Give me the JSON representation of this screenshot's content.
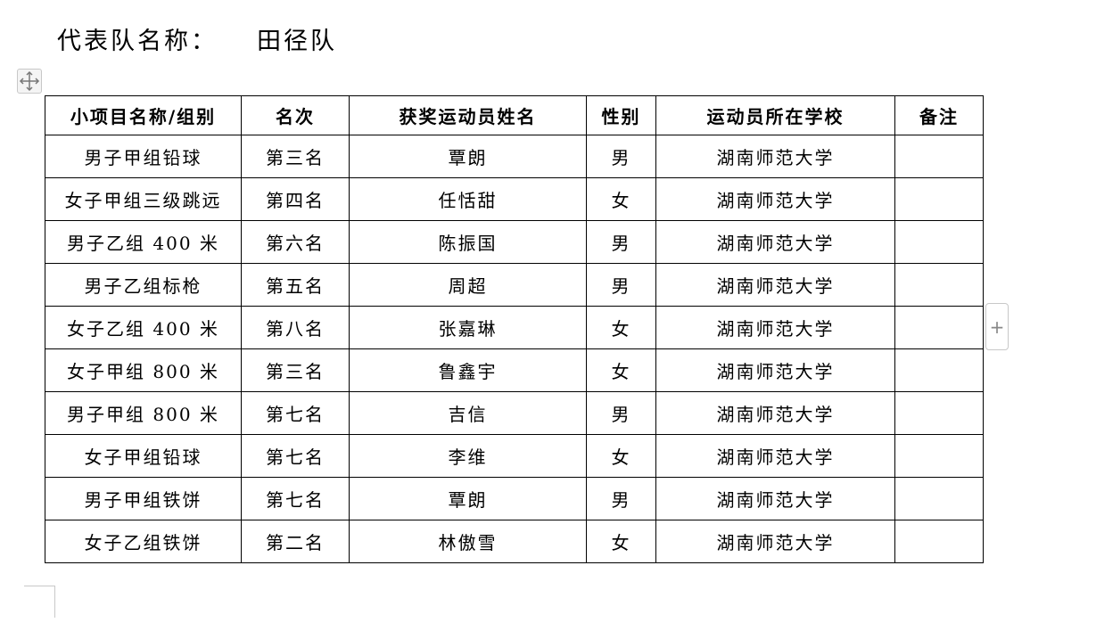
{
  "title": {
    "label": "代表队名称：",
    "value": "田径队"
  },
  "table": {
    "headers": [
      "小项目名称/组别",
      "名次",
      "获奖运动员姓名",
      "性别",
      "运动员所在学校",
      "备注"
    ],
    "rows": [
      [
        "男子甲组铅球",
        "第三名",
        "覃朗",
        "男",
        "湖南师范大学",
        ""
      ],
      [
        "女子甲组三级跳远",
        "第四名",
        "任恬甜",
        "女",
        "湖南师范大学",
        ""
      ],
      [
        "男子乙组 400 米",
        "第六名",
        "陈振国",
        "男",
        "湖南师范大学",
        ""
      ],
      [
        "男子乙组标枪",
        "第五名",
        "周超",
        "男",
        "湖南师范大学",
        ""
      ],
      [
        "女子乙组 400 米",
        "第八名",
        "张嘉琳",
        "女",
        "湖南师范大学",
        ""
      ],
      [
        "女子甲组 800 米",
        "第三名",
        "鲁鑫宇",
        "女",
        "湖南师范大学",
        ""
      ],
      [
        "男子甲组 800 米",
        "第七名",
        "吉信",
        "男",
        "湖南师范大学",
        ""
      ],
      [
        "女子甲组铅球",
        "第七名",
        "李维",
        "女",
        "湖南师范大学",
        ""
      ],
      [
        "男子甲组铁饼",
        "第七名",
        "覃朗",
        "男",
        "湖南师范大学",
        ""
      ],
      [
        "女子乙组铁饼",
        "第二名",
        "林傲雪",
        "女",
        "湖南师范大学",
        ""
      ]
    ]
  },
  "controls": {
    "add_row_icon": "+",
    "move_icon": "move-arrows"
  }
}
